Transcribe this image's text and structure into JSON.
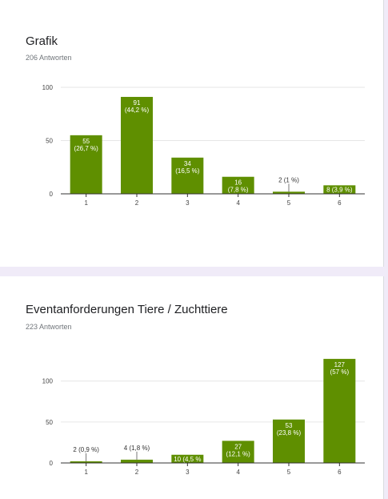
{
  "theme": {
    "bar_color": "#5f8f00",
    "page_bg": "#f0ebf8",
    "grid_color": "#e6e6e6",
    "axis_color": "#333333"
  },
  "chart_data": [
    {
      "type": "bar",
      "title": "Grafik",
      "subtitle": "206 Antworten",
      "categories": [
        "1",
        "2",
        "3",
        "4",
        "5",
        "6"
      ],
      "values": [
        55,
        91,
        34,
        16,
        2,
        8
      ],
      "labels": [
        [
          "55",
          "(26,7 %)"
        ],
        [
          "91",
          "(44,2 %)"
        ],
        [
          "34",
          "(16,5 %)"
        ],
        [
          "16",
          "(7,8 %)"
        ],
        [
          "2 (1 %)"
        ],
        [
          "8 (3,9 %)"
        ]
      ],
      "ylim": [
        0,
        100
      ],
      "yticks": [
        0,
        50,
        100
      ],
      "grid": true,
      "xlabel": "",
      "ylabel": ""
    },
    {
      "type": "bar",
      "title": "Eventanforderungen Tiere / Zuchttiere",
      "subtitle": "223 Antworten",
      "categories": [
        "1",
        "2",
        "3",
        "4",
        "5",
        "6"
      ],
      "values": [
        2,
        4,
        10,
        27,
        53,
        127
      ],
      "labels": [
        [
          "2 (0,9 %)"
        ],
        [
          "4 (1,8 %)"
        ],
        [
          "10 (4,5 %"
        ],
        [
          "27",
          "(12,1 %)"
        ],
        [
          "53",
          "(23,8 %)"
        ],
        [
          "127",
          "(57 %)"
        ]
      ],
      "ylim": [
        0,
        130
      ],
      "yticks": [
        0,
        50,
        100
      ],
      "grid": true,
      "xlabel": "",
      "ylabel": ""
    }
  ]
}
